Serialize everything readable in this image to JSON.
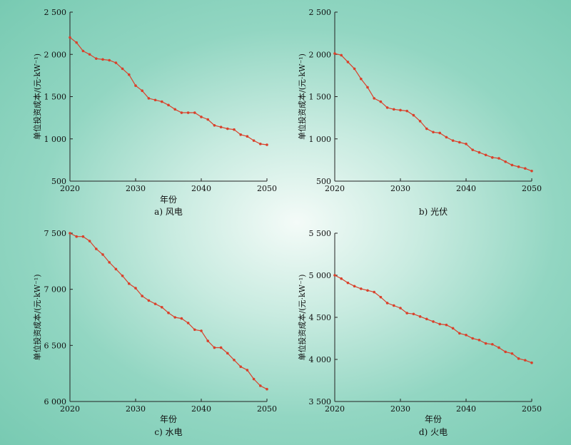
{
  "chart_data": [
    {
      "type": "line",
      "caption": "a) 风电",
      "xlabel": "年份",
      "ylabel": "单位投资成本/(元·kW⁻¹)",
      "xlim": [
        2020,
        2050
      ],
      "ylim": [
        500,
        2500
      ],
      "xticks": [
        2020,
        2030,
        2040,
        2050
      ],
      "xtick_labels": [
        "2020",
        "2030",
        "2040",
        "2050"
      ],
      "yticks": [
        500,
        1000,
        1500,
        2000,
        2500
      ],
      "ytick_labels": [
        "500",
        "1 000",
        "1 500",
        "2 000",
        "2 500"
      ],
      "color": "#d9412b",
      "x": [
        2020,
        2021,
        2022,
        2023,
        2024,
        2025,
        2026,
        2027,
        2028,
        2029,
        2030,
        2031,
        2032,
        2033,
        2034,
        2035,
        2036,
        2037,
        2038,
        2039,
        2040,
        2041,
        2042,
        2043,
        2044,
        2045,
        2046,
        2047,
        2048,
        2049,
        2050
      ],
      "values": [
        2200,
        2140,
        2040,
        2000,
        1950,
        1940,
        1930,
        1900,
        1830,
        1760,
        1630,
        1570,
        1480,
        1460,
        1440,
        1400,
        1350,
        1310,
        1310,
        1310,
        1260,
        1230,
        1160,
        1140,
        1120,
        1110,
        1050,
        1030,
        980,
        940,
        930
      ]
    },
    {
      "type": "line",
      "caption": "b) 光伏",
      "xlabel": "",
      "ylabel": "单位投资成本/(元·kW⁻¹)",
      "xlim": [
        2020,
        2050
      ],
      "ylim": [
        500,
        2500
      ],
      "xticks": [
        2020,
        2030,
        2040,
        2050
      ],
      "xtick_labels": [
        "2020",
        "2030",
        "2040",
        "2050"
      ],
      "yticks": [
        500,
        1000,
        1500,
        2000,
        2500
      ],
      "ytick_labels": [
        "500",
        "1 000",
        "1 500",
        "2 000",
        "2 500"
      ],
      "color": "#d9412b",
      "x": [
        2020,
        2021,
        2022,
        2023,
        2024,
        2025,
        2026,
        2027,
        2028,
        2029,
        2030,
        2031,
        2032,
        2033,
        2034,
        2035,
        2036,
        2037,
        2038,
        2039,
        2040,
        2041,
        2042,
        2043,
        2044,
        2045,
        2046,
        2047,
        2048,
        2049,
        2050
      ],
      "values": [
        2010,
        1990,
        1910,
        1830,
        1710,
        1610,
        1480,
        1440,
        1370,
        1350,
        1340,
        1330,
        1280,
        1210,
        1120,
        1080,
        1070,
        1020,
        980,
        960,
        940,
        870,
        840,
        810,
        780,
        770,
        730,
        690,
        670,
        650,
        620
      ]
    },
    {
      "type": "line",
      "caption": "c) 水电",
      "xlabel": "年份",
      "ylabel": "单位投资成本/(元·kW⁻¹)",
      "xlim": [
        2020,
        2050
      ],
      "ylim": [
        6000,
        7500
      ],
      "xticks": [
        2020,
        2030,
        2040,
        2050
      ],
      "xtick_labels": [
        "2020",
        "2030",
        "2040",
        "2050"
      ],
      "yticks": [
        6000,
        6500,
        7000,
        7500
      ],
      "ytick_labels": [
        "6 000",
        "6 500",
        "7 000",
        "7 500"
      ],
      "color": "#d9412b",
      "x": [
        2020,
        2021,
        2022,
        2023,
        2024,
        2025,
        2026,
        2027,
        2028,
        2029,
        2030,
        2031,
        2032,
        2033,
        2034,
        2035,
        2036,
        2037,
        2038,
        2039,
        2040,
        2041,
        2042,
        2043,
        2044,
        2045,
        2046,
        2047,
        2048,
        2049,
        2050
      ],
      "values": [
        7500,
        7470,
        7470,
        7430,
        7360,
        7310,
        7240,
        7180,
        7120,
        7050,
        7010,
        6940,
        6900,
        6870,
        6840,
        6790,
        6750,
        6740,
        6700,
        6640,
        6630,
        6540,
        6480,
        6480,
        6430,
        6370,
        6310,
        6280,
        6200,
        6140,
        6110
      ]
    },
    {
      "type": "line",
      "caption": "d) 火电",
      "xlabel": "年份",
      "ylabel": "单位投资成本/(元·kW⁻¹)",
      "xlim": [
        2020,
        2050
      ],
      "ylim": [
        3500,
        5500
      ],
      "xticks": [
        2020,
        2030,
        2040,
        2050
      ],
      "xtick_labels": [
        "2020",
        "2030",
        "2040",
        "2050"
      ],
      "yticks": [
        3500,
        4000,
        4500,
        5000,
        5500
      ],
      "ytick_labels": [
        "3 500",
        "4 000",
        "4 500",
        "5 000",
        "5 500"
      ],
      "color": "#d9412b",
      "x": [
        2020,
        2021,
        2022,
        2023,
        2024,
        2025,
        2026,
        2027,
        2028,
        2029,
        2030,
        2031,
        2032,
        2033,
        2034,
        2035,
        2036,
        2037,
        2038,
        2039,
        2040,
        2041,
        2042,
        2043,
        2044,
        2045,
        2046,
        2047,
        2048,
        2049,
        2050
      ],
      "values": [
        5000,
        4960,
        4910,
        4870,
        4840,
        4820,
        4800,
        4740,
        4670,
        4640,
        4610,
        4550,
        4540,
        4510,
        4480,
        4450,
        4420,
        4410,
        4370,
        4310,
        4290,
        4250,
        4230,
        4190,
        4180,
        4140,
        4090,
        4070,
        4010,
        3990,
        3960
      ]
    }
  ]
}
